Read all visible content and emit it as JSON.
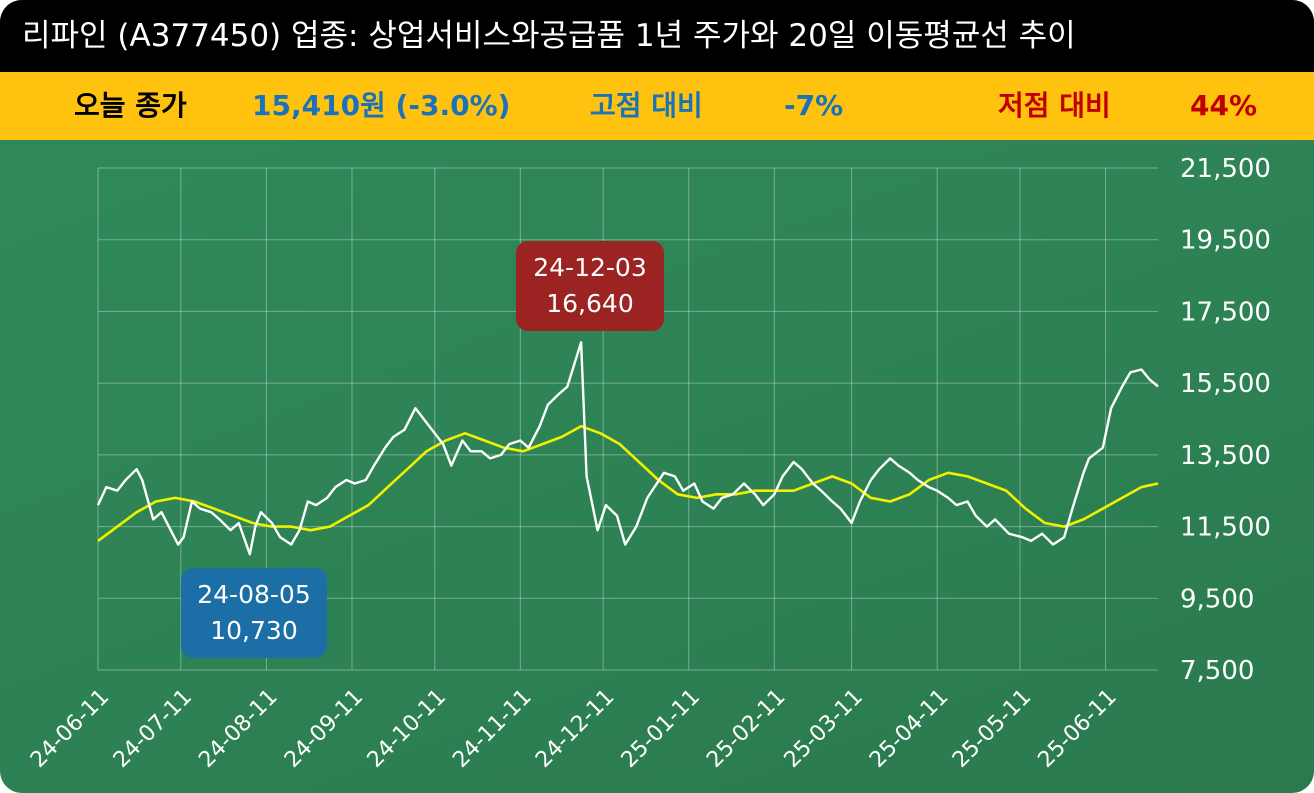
{
  "title": "리파인 (A377450) 업종: 상업서비스와공급품  1년 주가와 20일 이동평균선 추이",
  "info": {
    "today_label": "오늘 종가",
    "today_value": "15,410원 (-3.0%)",
    "high_label": "고점 대비",
    "high_value": "-7%",
    "low_label": "저점 대비",
    "low_value": "44%"
  },
  "colors": {
    "title_bg": "#000000",
    "info_bg": "#ffc20e",
    "today_value": "#1a73b8",
    "high": "#1a73b8",
    "low": "#c00000",
    "price_line": "#ffffff",
    "ma_line": "#f2f200",
    "high_callout": "#9b2322",
    "low_callout": "#1c6fa6"
  },
  "callouts": {
    "high": {
      "date": "24-12-03",
      "value": "16,640"
    },
    "low": {
      "date": "24-08-05",
      "value": "10,730"
    }
  },
  "chart_data": {
    "type": "line",
    "ylim": [
      7500,
      21500
    ],
    "yticks": [
      "21,500",
      "19,500",
      "17,500",
      "15,500",
      "13,500",
      "11,500",
      "9,500",
      "7,500"
    ],
    "ytick_values": [
      21500,
      19500,
      17500,
      15500,
      13500,
      11500,
      9500,
      7500
    ],
    "xticks": [
      "24-06-11",
      "24-07-11",
      "24-08-11",
      "24-09-11",
      "24-10-11",
      "24-11-11",
      "24-12-11",
      "25-01-11",
      "25-02-11",
      "25-03-11",
      "25-04-11",
      "25-05-11",
      "25-06-11"
    ],
    "x_range": [
      "2024-06-11",
      "2025-06-30"
    ],
    "grid": true,
    "series": [
      {
        "values": [
          [
            "2024-06-11",
            12100
          ],
          [
            "2024-06-14",
            12600
          ],
          [
            "2024-06-18",
            12500
          ],
          [
            "2024-06-21",
            12800
          ],
          [
            "2024-06-25",
            13100
          ],
          [
            "2024-06-27",
            12800
          ],
          [
            "2024-07-01",
            11700
          ],
          [
            "2024-07-04",
            11900
          ],
          [
            "2024-07-08",
            11300
          ],
          [
            "2024-07-10",
            11000
          ],
          [
            "2024-07-12",
            11200
          ],
          [
            "2024-07-15",
            12200
          ],
          [
            "2024-07-18",
            12000
          ],
          [
            "2024-07-22",
            11900
          ],
          [
            "2024-07-25",
            11700
          ],
          [
            "2024-07-29",
            11400
          ],
          [
            "2024-08-01",
            11600
          ],
          [
            "2024-08-05",
            10730
          ],
          [
            "2024-08-07",
            11500
          ],
          [
            "2024-08-09",
            11900
          ],
          [
            "2024-08-13",
            11600
          ],
          [
            "2024-08-16",
            11200
          ],
          [
            "2024-08-20",
            11000
          ],
          [
            "2024-08-23",
            11400
          ],
          [
            "2024-08-26",
            12200
          ],
          [
            "2024-08-29",
            12100
          ],
          [
            "2024-09-02",
            12300
          ],
          [
            "2024-09-05",
            12600
          ],
          [
            "2024-09-09",
            12800
          ],
          [
            "2024-09-12",
            12700
          ],
          [
            "2024-09-16",
            12800
          ],
          [
            "2024-09-19",
            13200
          ],
          [
            "2024-09-23",
            13700
          ],
          [
            "2024-09-26",
            14000
          ],
          [
            "2024-09-30",
            14200
          ],
          [
            "2024-10-04",
            14800
          ],
          [
            "2024-10-07",
            14500
          ],
          [
            "2024-10-10",
            14200
          ],
          [
            "2024-10-14",
            13800
          ],
          [
            "2024-10-17",
            13200
          ],
          [
            "2024-10-21",
            13900
          ],
          [
            "2024-10-24",
            13600
          ],
          [
            "2024-10-28",
            13600
          ],
          [
            "2024-10-31",
            13400
          ],
          [
            "2024-11-04",
            13500
          ],
          [
            "2024-11-07",
            13800
          ],
          [
            "2024-11-11",
            13900
          ],
          [
            "2024-11-14",
            13700
          ],
          [
            "2024-11-18",
            14300
          ],
          [
            "2024-11-21",
            14900
          ],
          [
            "2024-11-25",
            15200
          ],
          [
            "2024-11-28",
            15400
          ],
          [
            "2024-12-03",
            16640
          ],
          [
            "2024-12-05",
            12900
          ],
          [
            "2024-12-09",
            11400
          ],
          [
            "2024-12-12",
            12100
          ],
          [
            "2024-12-16",
            11800
          ],
          [
            "2024-12-19",
            11000
          ],
          [
            "2024-12-23",
            11500
          ],
          [
            "2024-12-27",
            12300
          ],
          [
            "2025-01-02",
            13000
          ],
          [
            "2025-01-06",
            12900
          ],
          [
            "2025-01-09",
            12500
          ],
          [
            "2025-01-13",
            12700
          ],
          [
            "2025-01-16",
            12200
          ],
          [
            "2025-01-20",
            12000
          ],
          [
            "2025-01-23",
            12300
          ],
          [
            "2025-01-27",
            12400
          ],
          [
            "2025-01-31",
            12700
          ],
          [
            "2025-02-04",
            12400
          ],
          [
            "2025-02-07",
            12100
          ],
          [
            "2025-02-11",
            12400
          ],
          [
            "2025-02-14",
            12900
          ],
          [
            "2025-02-18",
            13300
          ],
          [
            "2025-02-21",
            13100
          ],
          [
            "2025-02-25",
            12700
          ],
          [
            "2025-02-28",
            12500
          ],
          [
            "2025-03-04",
            12200
          ],
          [
            "2025-03-07",
            12000
          ],
          [
            "2025-03-11",
            11600
          ],
          [
            "2025-03-14",
            12200
          ],
          [
            "2025-03-18",
            12800
          ],
          [
            "2025-03-21",
            13100
          ],
          [
            "2025-03-25",
            13400
          ],
          [
            "2025-03-28",
            13200
          ],
          [
            "2025-04-01",
            13000
          ],
          [
            "2025-04-04",
            12800
          ],
          [
            "2025-04-08",
            12600
          ],
          [
            "2025-04-11",
            12500
          ],
          [
            "2025-04-15",
            12300
          ],
          [
            "2025-04-18",
            12100
          ],
          [
            "2025-04-22",
            12200
          ],
          [
            "2025-04-25",
            11800
          ],
          [
            "2025-04-29",
            11500
          ],
          [
            "2025-05-02",
            11700
          ],
          [
            "2025-05-07",
            11300
          ],
          [
            "2025-05-12",
            11200
          ],
          [
            "2025-05-15",
            11100
          ],
          [
            "2025-05-19",
            11300
          ],
          [
            "2025-05-23",
            11000
          ],
          [
            "2025-05-27",
            11200
          ],
          [
            "2025-05-30",
            12000
          ],
          [
            "2025-06-03",
            13000
          ],
          [
            "2025-06-05",
            13400
          ],
          [
            "2025-06-10",
            13700
          ],
          [
            "2025-06-13",
            14800
          ],
          [
            "2025-06-17",
            15400
          ],
          [
            "2025-06-20",
            15800
          ],
          [
            "2025-06-24",
            15880
          ],
          [
            "2025-06-27",
            15600
          ],
          [
            "2025-06-30",
            15410
          ]
        ]
      },
      {
        "values": [
          [
            "2024-06-11",
            11100
          ],
          [
            "2024-06-18",
            11500
          ],
          [
            "2024-06-25",
            11900
          ],
          [
            "2024-07-02",
            12200
          ],
          [
            "2024-07-09",
            12300
          ],
          [
            "2024-07-16",
            12200
          ],
          [
            "2024-07-23",
            12000
          ],
          [
            "2024-07-30",
            11800
          ],
          [
            "2024-08-06",
            11600
          ],
          [
            "2024-08-13",
            11500
          ],
          [
            "2024-08-20",
            11500
          ],
          [
            "2024-08-27",
            11400
          ],
          [
            "2024-09-03",
            11500
          ],
          [
            "2024-09-10",
            11800
          ],
          [
            "2024-09-17",
            12100
          ],
          [
            "2024-09-24",
            12600
          ],
          [
            "2024-10-01",
            13100
          ],
          [
            "2024-10-08",
            13600
          ],
          [
            "2024-10-15",
            13900
          ],
          [
            "2024-10-22",
            14100
          ],
          [
            "2024-10-29",
            13900
          ],
          [
            "2024-11-05",
            13700
          ],
          [
            "2024-11-12",
            13600
          ],
          [
            "2024-11-19",
            13800
          ],
          [
            "2024-11-26",
            14000
          ],
          [
            "2024-12-03",
            14300
          ],
          [
            "2024-12-10",
            14100
          ],
          [
            "2024-12-17",
            13800
          ],
          [
            "2024-12-24",
            13300
          ],
          [
            "2024-12-31",
            12800
          ],
          [
            "2025-01-07",
            12400
          ],
          [
            "2025-01-14",
            12300
          ],
          [
            "2025-01-21",
            12400
          ],
          [
            "2025-01-28",
            12400
          ],
          [
            "2025-02-04",
            12500
          ],
          [
            "2025-02-11",
            12500
          ],
          [
            "2025-02-18",
            12500
          ],
          [
            "2025-02-25",
            12700
          ],
          [
            "2025-03-04",
            12900
          ],
          [
            "2025-03-11",
            12700
          ],
          [
            "2025-03-18",
            12300
          ],
          [
            "2025-03-25",
            12200
          ],
          [
            "2025-04-01",
            12400
          ],
          [
            "2025-04-08",
            12800
          ],
          [
            "2025-04-15",
            13000
          ],
          [
            "2025-04-22",
            12900
          ],
          [
            "2025-04-29",
            12700
          ],
          [
            "2025-05-06",
            12500
          ],
          [
            "2025-05-13",
            12000
          ],
          [
            "2025-05-20",
            11600
          ],
          [
            "2025-05-27",
            11500
          ],
          [
            "2025-06-03",
            11700
          ],
          [
            "2025-06-10",
            12000
          ],
          [
            "2025-06-17",
            12300
          ],
          [
            "2025-06-24",
            12600
          ],
          [
            "2025-06-30",
            12700
          ]
        ]
      }
    ]
  }
}
